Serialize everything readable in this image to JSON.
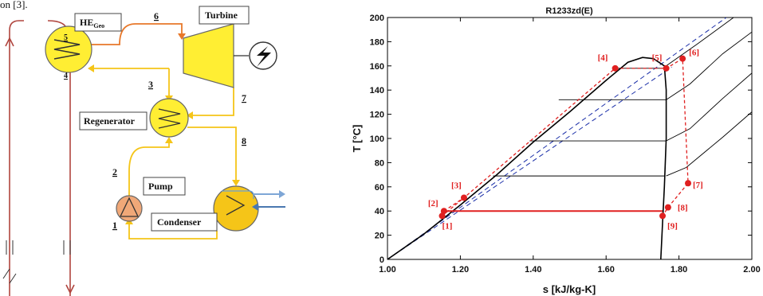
{
  "caption_fragment": "on [3].",
  "schematic": {
    "heat_exchanger": {
      "label": "HE",
      "sub": "Geo",
      "port_in": "5",
      "port_out": "4"
    },
    "turbine": {
      "label": "Turbine"
    },
    "regenerator": {
      "label": "Regenerator"
    },
    "pump": {
      "label": "Pump"
    },
    "condenser": {
      "label": "Condenser"
    },
    "streams": [
      "6",
      "3",
      "7",
      "8",
      "2",
      "1"
    ],
    "colors": {
      "hot": "#e8782a",
      "cycle": "#f5c518",
      "geo": "#b0453e",
      "cooling": "#4a78b0",
      "component": "#ffee33",
      "pump": "#f0a878"
    }
  },
  "chart_data": {
    "type": "line",
    "title": "R1233zd(E)",
    "xlabel": "s [kJ/kg-K]",
    "ylabel": "T [°C]",
    "xlim": [
      1.0,
      2.0
    ],
    "ylim": [
      0,
      200
    ],
    "xticks": [
      "1.00",
      "1.20",
      "1.40",
      "1.60",
      "1.80",
      "2.00"
    ],
    "yticks": [
      "0",
      "20",
      "40",
      "60",
      "80",
      "100",
      "120",
      "140",
      "160",
      "180",
      "200"
    ],
    "saturation_dome": {
      "liquid": [
        [
          1.0,
          0
        ],
        [
          1.1,
          21
        ],
        [
          1.2,
          45
        ],
        [
          1.3,
          70
        ],
        [
          1.4,
          97
        ],
        [
          1.5,
          122
        ],
        [
          1.6,
          148
        ],
        [
          1.66,
          163
        ],
        [
          1.7,
          167
        ],
        [
          1.73,
          166
        ]
      ],
      "vapor": [
        [
          1.73,
          166
        ],
        [
          1.76,
          160
        ],
        [
          1.765,
          140
        ],
        [
          1.765,
          100
        ],
        [
          1.76,
          60
        ],
        [
          1.755,
          30
        ],
        [
          1.75,
          0
        ]
      ]
    },
    "isotherm_lines": [
      {
        "T": 158,
        "s": [
          1.62,
          1.77
        ]
      },
      {
        "T": 132,
        "s": [
          1.47,
          1.765
        ]
      },
      {
        "T": 98,
        "s": [
          1.39,
          1.765
        ]
      },
      {
        "T": 69,
        "s": [
          1.29,
          1.76
        ]
      }
    ],
    "isobars": [
      [
        [
          1.765,
          160
        ],
        [
          1.85,
          178
        ],
        [
          1.95,
          200
        ]
      ],
      [
        [
          1.765,
          132
        ],
        [
          1.83,
          145
        ],
        [
          1.92,
          170
        ],
        [
          2.0,
          188
        ]
      ],
      [
        [
          1.765,
          98
        ],
        [
          1.83,
          108
        ],
        [
          1.92,
          133
        ],
        [
          2.0,
          154
        ]
      ],
      [
        [
          1.765,
          69
        ],
        [
          1.82,
          76
        ],
        [
          1.92,
          101
        ],
        [
          2.0,
          122
        ]
      ]
    ],
    "isentropic_ref_1": [
      [
        1.0,
        0
      ],
      [
        1.93,
        200
      ]
    ],
    "isentropic_ref_2": [
      [
        1.0,
        0
      ],
      [
        1.78,
        159
      ]
    ],
    "points": [
      {
        "label": "[1]",
        "s": 1.15,
        "T": 36
      },
      {
        "label": "[2]",
        "s": 1.155,
        "T": 40
      },
      {
        "label": "[3]",
        "s": 1.21,
        "T": 51
      },
      {
        "label": "[4]",
        "s": 1.625,
        "T": 158
      },
      {
        "label": "[5]",
        "s": 1.765,
        "T": 158
      },
      {
        "label": "[6]",
        "s": 1.81,
        "T": 166
      },
      {
        "label": "[7]",
        "s": 1.825,
        "T": 63
      },
      {
        "label": "[8]",
        "s": 1.77,
        "T": 43
      },
      {
        "label": "[9]",
        "s": 1.755,
        "T": 36
      }
    ],
    "colors": {
      "cycle": "#e02020",
      "dome": "#000000",
      "isobar": "#000000",
      "ref": "#1a2ea8"
    }
  }
}
